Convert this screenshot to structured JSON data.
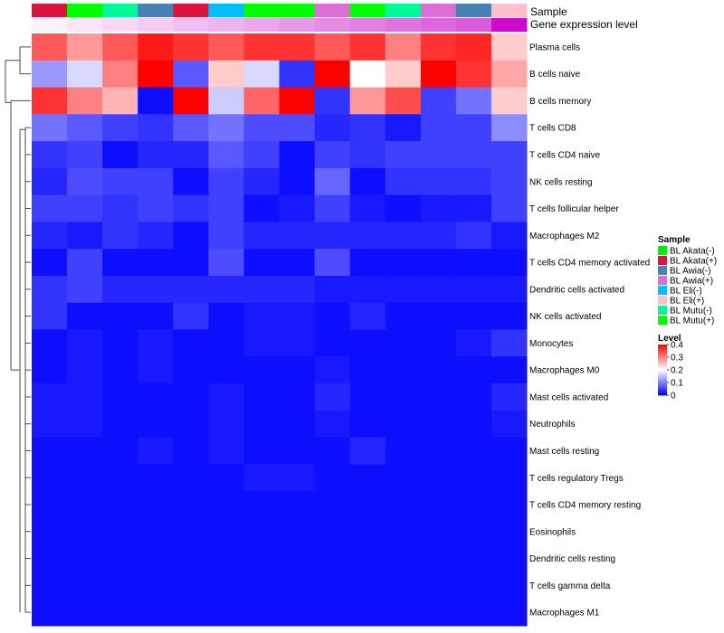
{
  "chart_data": {
    "type": "heatmap",
    "annotation_labels": {
      "sample": "Sample",
      "expression": "Gene expression level"
    },
    "sample_annotation": [
      "BL Akata(+)",
      "BL Mutu(+)",
      "BL Mutu(-)",
      "BL Awia(-)",
      "BL Akata(+)",
      "BL Eli(-)",
      "BL Mutu(+)",
      "BL Mutu(+)",
      "BL Awia(+)",
      "BL Mutu(+)",
      "BL Mutu(-)",
      "BL Awia(+)",
      "BL Awia(-)",
      "BL Eli(+)"
    ],
    "expression_annotation": [
      0.05,
      0.1,
      0.15,
      0.2,
      0.25,
      0.3,
      0.35,
      0.4,
      0.45,
      0.5,
      0.55,
      0.6,
      0.65,
      0.95
    ],
    "rows": [
      "Plasma cells",
      "B cells naive",
      "B cells memory",
      "T cells CD8",
      "T cells CD4 naive",
      "NK cells resting",
      "T cells follicular helper",
      "Macrophages M2",
      "T cells CD4 memory activated",
      "Dendritic cells activated",
      "NK cells activated",
      "Monocytes",
      "Macrophages M0",
      "Mast cells activated",
      "Neutrophils",
      "Mast cells resting",
      "T cells regulatory  Tregs",
      "T cells CD4 memory resting",
      "Eosinophils",
      "Dendritic cells resting",
      "T cells gamma delta",
      "Macrophages M1"
    ],
    "values": [
      [
        0.33,
        0.28,
        0.33,
        0.38,
        0.36,
        0.33,
        0.36,
        0.36,
        0.33,
        0.36,
        0.3,
        0.36,
        0.37,
        0.24
      ],
      [
        0.12,
        0.17,
        0.3,
        0.4,
        0.07,
        0.24,
        0.17,
        0.04,
        0.4,
        0.2,
        0.24,
        0.4,
        0.36,
        0.27
      ],
      [
        0.36,
        0.3,
        0.26,
        0.01,
        0.4,
        0.16,
        0.32,
        0.4,
        0.04,
        0.28,
        0.34,
        0.05,
        0.09,
        0.24
      ],
      [
        0.09,
        0.07,
        0.05,
        0.04,
        0.07,
        0.09,
        0.06,
        0.06,
        0.03,
        0.04,
        0.02,
        0.05,
        0.05,
        0.11
      ],
      [
        0.04,
        0.05,
        0.01,
        0.03,
        0.03,
        0.07,
        0.05,
        0.01,
        0.05,
        0.04,
        0.05,
        0.05,
        0.05,
        0.05
      ],
      [
        0.03,
        0.06,
        0.05,
        0.05,
        0.01,
        0.05,
        0.03,
        0.01,
        0.08,
        0.01,
        0.04,
        0.04,
        0.04,
        0.05
      ],
      [
        0.05,
        0.05,
        0.04,
        0.05,
        0.04,
        0.05,
        0.01,
        0.02,
        0.05,
        0.02,
        0.01,
        0.02,
        0.02,
        0.05
      ],
      [
        0.03,
        0.02,
        0.04,
        0.03,
        0.01,
        0.05,
        0.03,
        0.03,
        0.03,
        0.03,
        0.03,
        0.03,
        0.04,
        0.02
      ],
      [
        0.01,
        0.05,
        0.01,
        0.01,
        0.01,
        0.06,
        0.01,
        0.01,
        0.06,
        0.01,
        0.01,
        0.01,
        0.01,
        0.01
      ],
      [
        0.04,
        0.05,
        0.03,
        0.03,
        0.03,
        0.03,
        0.03,
        0.03,
        0.02,
        0.02,
        0.02,
        0.02,
        0.02,
        0.02
      ],
      [
        0.04,
        0.01,
        0.01,
        0.01,
        0.04,
        0.01,
        0.02,
        0.02,
        0.01,
        0.03,
        0.01,
        0.01,
        0.01,
        0.01
      ],
      [
        0.01,
        0.02,
        0.01,
        0.02,
        0.01,
        0.01,
        0.02,
        0.02,
        0.01,
        0.01,
        0.01,
        0.01,
        0.02,
        0.04
      ],
      [
        0.01,
        0.02,
        0.01,
        0.02,
        0.01,
        0.01,
        0.01,
        0.01,
        0.02,
        0.01,
        0.01,
        0.01,
        0.01,
        0.01
      ],
      [
        0.02,
        0.02,
        0.01,
        0.01,
        0.01,
        0.02,
        0.01,
        0.01,
        0.03,
        0.01,
        0.01,
        0.01,
        0.01,
        0.03
      ],
      [
        0.02,
        0.02,
        0.01,
        0.01,
        0.01,
        0.02,
        0.01,
        0.01,
        0.02,
        0.01,
        0.01,
        0.01,
        0.01,
        0.02
      ],
      [
        0.01,
        0.01,
        0.01,
        0.02,
        0.01,
        0.02,
        0.01,
        0.01,
        0.01,
        0.03,
        0.01,
        0.01,
        0.01,
        0.01
      ],
      [
        0.01,
        0.01,
        0.01,
        0.01,
        0.01,
        0.01,
        0.02,
        0.02,
        0.01,
        0.01,
        0.01,
        0.01,
        0.01,
        0.01
      ],
      [
        0.01,
        0.01,
        0.01,
        0.01,
        0.01,
        0.01,
        0.01,
        0.01,
        0.01,
        0.01,
        0.01,
        0.01,
        0.01,
        0.01
      ],
      [
        0.01,
        0.01,
        0.01,
        0.01,
        0.01,
        0.01,
        0.01,
        0.01,
        0.01,
        0.01,
        0.01,
        0.01,
        0.01,
        0.01
      ],
      [
        0.01,
        0.01,
        0.01,
        0.01,
        0.01,
        0.01,
        0.01,
        0.01,
        0.01,
        0.01,
        0.01,
        0.01,
        0.01,
        0.01
      ],
      [
        0.01,
        0.01,
        0.01,
        0.01,
        0.01,
        0.01,
        0.01,
        0.01,
        0.01,
        0.01,
        0.01,
        0.01,
        0.01,
        0.01
      ],
      [
        0.01,
        0.01,
        0.01,
        0.01,
        0.01,
        0.01,
        0.01,
        0.01,
        0.01,
        0.01,
        0.01,
        0.01,
        0.01,
        0.01
      ]
    ],
    "color_scale": {
      "min": 0,
      "max": 0.4,
      "low": "#0000ff",
      "mid": "#ffffff",
      "high": "#ff0000",
      "mid_value": 0.2
    },
    "legend_sample": {
      "title": "Sample",
      "items": [
        {
          "label": "BL Akata(-)",
          "color": "#00ee00"
        },
        {
          "label": "BL Akata(+)",
          "color": "#dc143c"
        },
        {
          "label": "BL Awia(-)",
          "color": "#4682b4"
        },
        {
          "label": "BL Awia(+)",
          "color": "#da70d6"
        },
        {
          "label": "BL Eli(-)",
          "color": "#00bfff"
        },
        {
          "label": "BL Eli(+)",
          "color": "#ffc0cb"
        },
        {
          "label": "BL Mutu(-)",
          "color": "#00fa9a"
        },
        {
          "label": "BL Mutu(+)",
          "color": "#00ff00"
        }
      ]
    },
    "legend_level": {
      "title": "Level",
      "ticks": [
        "0.4",
        "0.3",
        "0.2",
        "0.1",
        "0"
      ],
      "tick_values": [
        0.4,
        0.3,
        0.2,
        0.1,
        0
      ]
    },
    "expression_colors": {
      "low": "#ffffff",
      "high": "#c800c8"
    }
  }
}
